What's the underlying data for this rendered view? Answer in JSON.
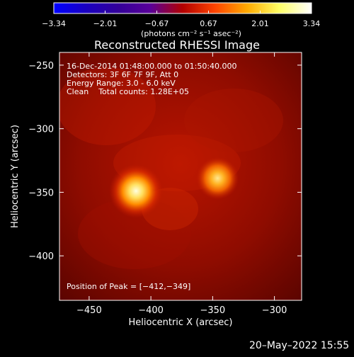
{
  "colorbar": {
    "ticks": [
      "-3.34",
      "-2.01",
      "-0.67",
      "0.67",
      "2.01",
      "3.34"
    ],
    "unit_label": "(photons cm⁻² s⁻¹ asec⁻²)",
    "palette": [
      "#0000ff",
      "#1a00c0",
      "#330099",
      "#5a0099",
      "#b30000",
      "#ff4400",
      "#ffaa00",
      "#ffff66",
      "#ffffff"
    ],
    "range": [
      -3.34,
      3.34
    ]
  },
  "plot": {
    "title": "Reconstructed RHESSI Image",
    "xlabel": "Heliocentric X (arcsec)",
    "ylabel": "Heliocentric Y (arcsec)",
    "x_ticks": [
      "−450",
      "−400",
      "−350",
      "−300"
    ],
    "x_tick_values": [
      -450,
      -400,
      -350,
      -300
    ],
    "y_ticks": [
      "−250",
      "−300",
      "−350",
      "−400"
    ],
    "y_tick_values": [
      -250,
      -300,
      -350,
      -400
    ],
    "xlim": [
      -474,
      -278
    ],
    "ylim": [
      -435,
      -240
    ],
    "annotations": [
      "16-Dec-2014 01:48:00.000 to 01:50:40.000",
      "Detectors: 3F 6F 7F 9F, Att 0",
      "Energy Range: 3.0 - 6.0 keV",
      "Clean    Total counts: 1.28E+05"
    ],
    "peak_label": "Position of Peak = [−412,−349]",
    "sources": [
      {
        "x": -412,
        "y": -349
      },
      {
        "x": -346,
        "y": -339
      }
    ]
  },
  "timestamp": "20–May–2022 15:55"
}
